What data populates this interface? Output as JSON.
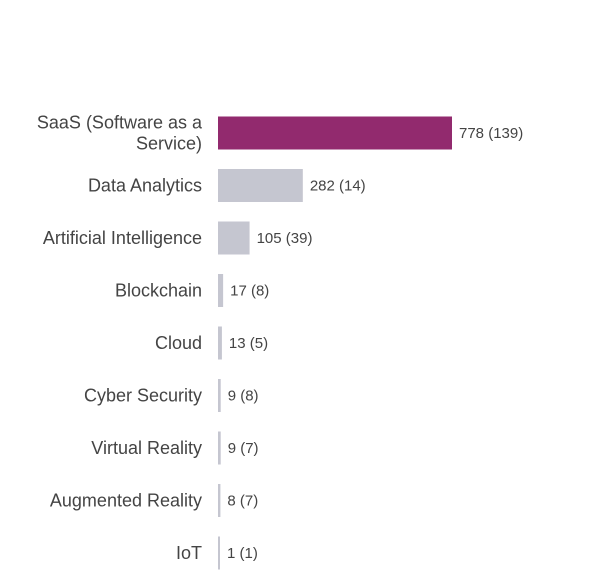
{
  "chart_data": {
    "type": "bar",
    "orientation": "horizontal",
    "categories": [
      "SaaS (Software as a Service)",
      "Data Analytics",
      "Artificial Intelligence",
      "Blockchain",
      "Cloud",
      "Cyber Security",
      "Virtual Reality",
      "Augmented Reality",
      "IoT"
    ],
    "category_lines": [
      [
        "SaaS (Software as a",
        "Service)"
      ],
      [
        "Data Analytics"
      ],
      [
        "Artificial Intelligence"
      ],
      [
        "Blockchain"
      ],
      [
        "Cloud"
      ],
      [
        "Cyber Security"
      ],
      [
        "Virtual Reality"
      ],
      [
        "Augmented Reality"
      ],
      [
        "IoT"
      ]
    ],
    "values": [
      778,
      282,
      105,
      17,
      13,
      9,
      9,
      8,
      1
    ],
    "secondary_values": [
      139,
      14,
      39,
      8,
      5,
      8,
      7,
      7,
      1
    ],
    "value_labels": [
      "778 (139)",
      "282 (14)",
      "105 (39)",
      "17 (8)",
      "13 (5)",
      "9 (8)",
      "9 (7)",
      "8 (7)",
      "1 (1)"
    ],
    "xlim": [
      0,
      778
    ],
    "grid": false,
    "legend": "none",
    "colors": {
      "highlight": "#922a6e",
      "default": "#c5c6d0",
      "text": "#444444"
    },
    "highlight_index": 0
  }
}
